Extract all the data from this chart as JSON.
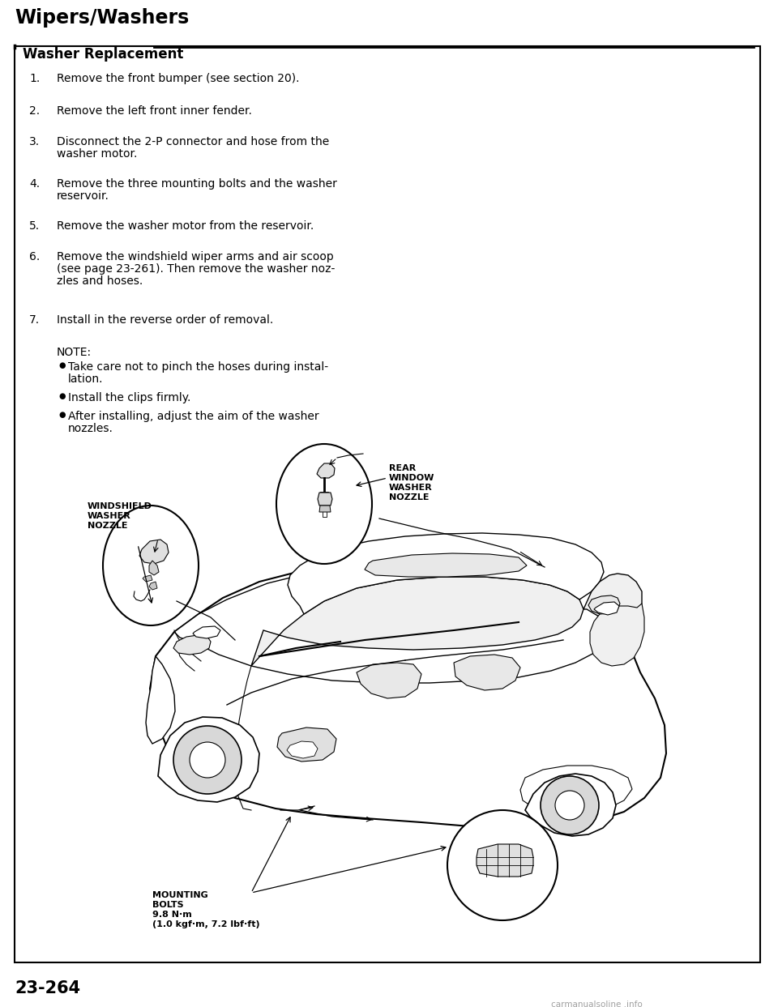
{
  "page_bg": "#ffffff",
  "title": "Wipers/Washers",
  "section_title": "Washer Replacement",
  "page_number": "23-264",
  "watermark": "carmanualsoline .info",
  "steps": [
    {
      "num": "1.",
      "text": "Remove the front bumper (see section 20)."
    },
    {
      "num": "2.",
      "text": "Remove the left front inner fender."
    },
    {
      "num": "3.",
      "lines": [
        "Disconnect the 2-P connector and hose from the",
        "washer motor."
      ]
    },
    {
      "num": "4.",
      "lines": [
        "Remove the three mounting bolts and the washer",
        "reservoir."
      ]
    },
    {
      "num": "5.",
      "text": "Remove the washer motor from the reservoir."
    },
    {
      "num": "6.",
      "lines": [
        "Remove the windshield wiper arms and air scoop",
        "(see page 23-261). Then remove the washer noz-",
        "zles and hoses."
      ]
    },
    {
      "num": "7.",
      "text": "Install in the reverse order of removal."
    }
  ],
  "note_label": "NOTE:",
  "note_bullets": [
    {
      "lines": [
        "Take care not to pinch the hoses during instal-",
        "lation."
      ]
    },
    {
      "lines": [
        "Install the clips firmly."
      ]
    },
    {
      "lines": [
        "After installing, adjust the aim of the washer",
        "nozzles."
      ]
    }
  ],
  "label_windshield": [
    "WINDSHIELD",
    "WASHER",
    "NOZZLE"
  ],
  "label_rear": [
    "REAR",
    "WINDOW",
    "WASHER",
    "NOZZLE"
  ],
  "label_mounting": [
    "MOUNTING",
    "BOLTS",
    "9.8 N·m",
    "(1.0 kgf·m, 7.2 lbf·ft)"
  ],
  "title_fontsize": 17,
  "section_fontsize": 12,
  "body_fontsize": 10,
  "note_fontsize": 10,
  "label_fontsize": 8,
  "page_num_fontsize": 15
}
